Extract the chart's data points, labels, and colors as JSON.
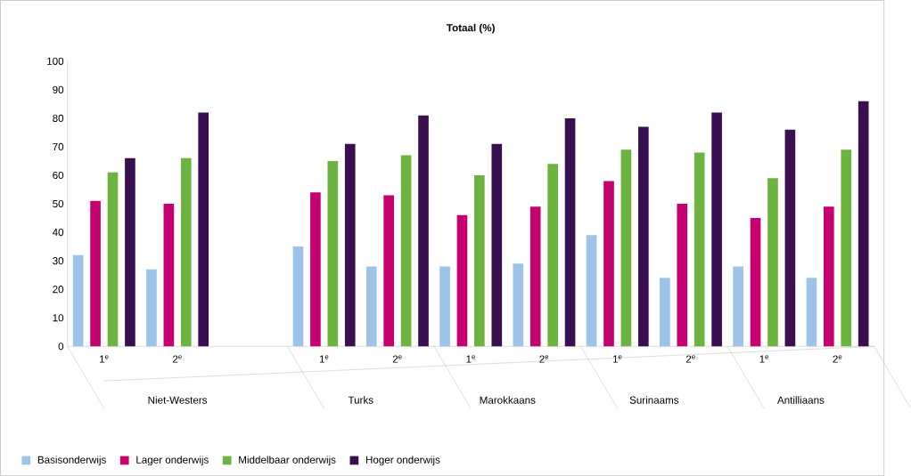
{
  "chart_data": {
    "type": "bar",
    "title": "Totaal (%)",
    "categories": [
      "1$^{e}$",
      "2$^{e}$",
      null,
      "1$^{e}$",
      "2$^{e}$",
      "1$^{e}$",
      "2$^{e}$",
      "1$^{e}$",
      "2$^{e}$",
      "1$^{e}$",
      "2$^{e}$"
    ],
    "annotations": [
      "Niet-Westers",
      "Turks",
      "Marokkaans",
      "Surinaams",
      "Antilliaans"
    ],
    "series": [
      {
        "name": "Basisonderwijs",
        "color": "#9dc3e6",
        "values": [
          32,
          27,
          null,
          35,
          28,
          28,
          29,
          39,
          24,
          28,
          24
        ]
      },
      {
        "name": "Lager onderwijs",
        "color": "#c6006f",
        "values": [
          51,
          50,
          null,
          54,
          53,
          46,
          49,
          58,
          50,
          45,
          49
        ]
      },
      {
        "name": "Middelbaar onderwijs",
        "color": "#6db33f",
        "values": [
          61,
          66,
          null,
          65,
          67,
          60,
          64,
          69,
          68,
          59,
          69
        ]
      },
      {
        "name": "Hoger onderwijs",
        "color": "#3a0f4f",
        "values": [
          66,
          82,
          null,
          71,
          81,
          71,
          80,
          77,
          82,
          76,
          86
        ]
      }
    ],
    "ylim": [
      0,
      100
    ],
    "yticks": [
      0,
      10,
      20,
      30,
      40,
      50,
      60,
      70,
      80,
      90,
      100
    ],
    "legend": "bottom"
  }
}
